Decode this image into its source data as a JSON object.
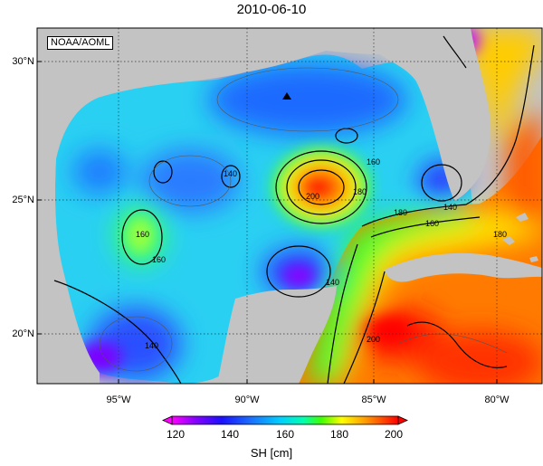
{
  "title": "2010-06-10",
  "credit": "NOAA/AOML",
  "map": {
    "lat_ticks": [
      {
        "label": "30°N",
        "value": 30
      },
      {
        "label": "25°N",
        "value": 25
      },
      {
        "label": "20°N",
        "value": 20
      }
    ],
    "lon_ticks": [
      {
        "label": "95°W",
        "value": -95
      },
      {
        "label": "90°W",
        "value": -90
      },
      {
        "label": "85°W",
        "value": -85
      },
      {
        "label": "80°W",
        "value": -80
      }
    ],
    "colors": {
      "land": "#c3c3c3",
      "grid": "#333333",
      "contour": "#000000"
    },
    "contour_labels": [
      "140",
      "140",
      "160",
      "160",
      "160",
      "180",
      "180",
      "200",
      "140",
      "160",
      "180",
      "200",
      "140"
    ]
  },
  "colorbar": {
    "title": "SH [cm]",
    "ticks": [
      "120",
      "140",
      "160",
      "180",
      "200"
    ],
    "colors": [
      "#ff00ff",
      "#6a00ff",
      "#0a0aff",
      "#1a6cff",
      "#00c8ff",
      "#00ffc0",
      "#40ff00",
      "#ffff00",
      "#ffb000",
      "#ff5000",
      "#ff0000"
    ]
  }
}
